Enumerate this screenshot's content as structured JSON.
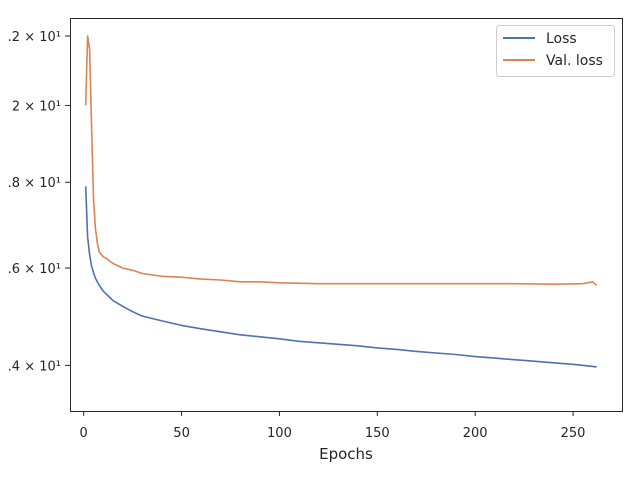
{
  "chart_data": {
    "type": "line",
    "title": "",
    "xlabel": "Epochs",
    "ylabel": "",
    "yscale": "log",
    "grid": false,
    "legend_position": "top-right",
    "xlim": [
      -7,
      275
    ],
    "ylim": [
      13.15,
      22.55
    ],
    "x_ticks": [
      0,
      50,
      100,
      150,
      200,
      250
    ],
    "y_ticks": [
      {
        "value": 14,
        "label": ".4 × 10¹"
      },
      {
        "value": 16,
        "label": ".6 × 10¹"
      },
      {
        "value": 18,
        "label": ".8 × 10¹"
      },
      {
        "value": 20,
        "label": "2 × 10¹"
      },
      {
        "value": 22,
        "label": ".2 × 10¹"
      }
    ],
    "series": [
      {
        "name": "Loss",
        "color": "#4c72b0",
        "points": [
          [
            1,
            17.9
          ],
          [
            2,
            16.7
          ],
          [
            3,
            16.3
          ],
          [
            4,
            16.05
          ],
          [
            5,
            15.9
          ],
          [
            6,
            15.78
          ],
          [
            8,
            15.62
          ],
          [
            10,
            15.5
          ],
          [
            12,
            15.42
          ],
          [
            15,
            15.3
          ],
          [
            20,
            15.18
          ],
          [
            25,
            15.07
          ],
          [
            30,
            14.98
          ],
          [
            40,
            14.88
          ],
          [
            50,
            14.79
          ],
          [
            60,
            14.72
          ],
          [
            70,
            14.66
          ],
          [
            80,
            14.6
          ],
          [
            90,
            14.56
          ],
          [
            100,
            14.52
          ],
          [
            110,
            14.47
          ],
          [
            120,
            14.44
          ],
          [
            130,
            14.41
          ],
          [
            140,
            14.38
          ],
          [
            150,
            14.34
          ],
          [
            160,
            14.31
          ],
          [
            170,
            14.27
          ],
          [
            180,
            14.24
          ],
          [
            190,
            14.21
          ],
          [
            200,
            14.17
          ],
          [
            210,
            14.14
          ],
          [
            220,
            14.11
          ],
          [
            230,
            14.08
          ],
          [
            240,
            14.05
          ],
          [
            250,
            14.02
          ],
          [
            260,
            13.98
          ],
          [
            262,
            13.97
          ]
        ]
      },
      {
        "name": "Val. loss",
        "color": "#dd8452",
        "points": [
          [
            1,
            20.0
          ],
          [
            2,
            22.0
          ],
          [
            3,
            21.6
          ],
          [
            4,
            19.5
          ],
          [
            5,
            17.6
          ],
          [
            6,
            16.9
          ],
          [
            7,
            16.55
          ],
          [
            8,
            16.35
          ],
          [
            10,
            16.25
          ],
          [
            12,
            16.2
          ],
          [
            15,
            16.1
          ],
          [
            20,
            16.0
          ],
          [
            25,
            15.95
          ],
          [
            30,
            15.88
          ],
          [
            40,
            15.82
          ],
          [
            50,
            15.8
          ],
          [
            60,
            15.76
          ],
          [
            70,
            15.74
          ],
          [
            80,
            15.7
          ],
          [
            90,
            15.7
          ],
          [
            100,
            15.68
          ],
          [
            120,
            15.66
          ],
          [
            140,
            15.66
          ],
          [
            160,
            15.66
          ],
          [
            180,
            15.66
          ],
          [
            200,
            15.66
          ],
          [
            220,
            15.66
          ],
          [
            240,
            15.65
          ],
          [
            255,
            15.66
          ],
          [
            260,
            15.7
          ],
          [
            262,
            15.62
          ]
        ]
      }
    ]
  }
}
